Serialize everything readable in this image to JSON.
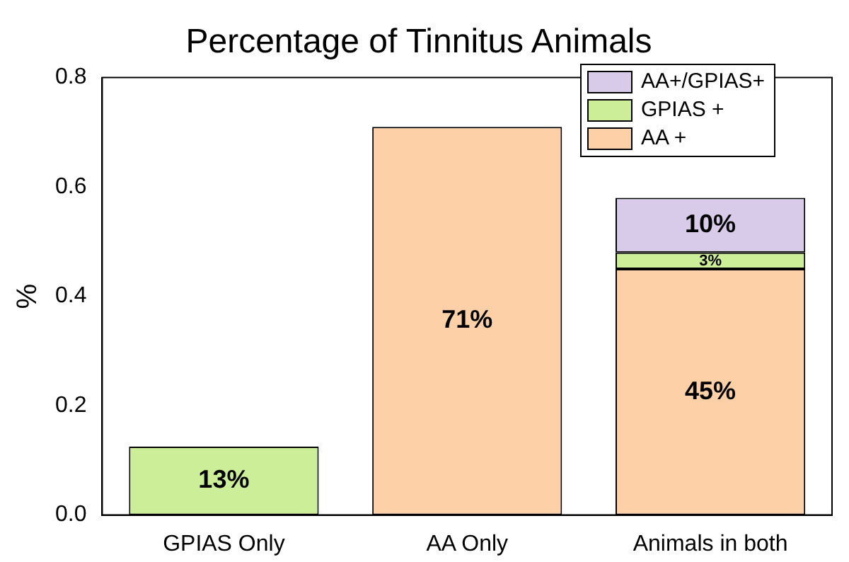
{
  "chart_data": {
    "type": "bar",
    "title": "Percentage of Tinnitus Animals",
    "ylabel": "%",
    "stacked": true,
    "legend": "top right",
    "grid": false,
    "categories": [
      "GPIAS Only",
      "AA Only",
      "Animals in both"
    ],
    "series": [
      {
        "name": "AA +",
        "color": "#fdd0a8",
        "values": [
          null,
          0.71,
          0.45
        ],
        "value_labels": [
          null,
          "71%",
          "45%"
        ]
      },
      {
        "name": "GPIAS +",
        "color": "#ccee99",
        "values": [
          0.125,
          null,
          0.03
        ],
        "value_labels": [
          "13%",
          null,
          "3%"
        ]
      },
      {
        "name": "AA+/GPIAS+",
        "color": "#d8cbea",
        "values": [
          null,
          null,
          0.1
        ],
        "value_labels": [
          null,
          null,
          "10%"
        ]
      }
    ],
    "ylim": [
      0,
      0.8
    ],
    "yticks": [
      {
        "value": 0,
        "label": "0.0"
      },
      {
        "value": 0.2,
        "label": "0.2"
      },
      {
        "value": 0.4,
        "label": "0.4"
      },
      {
        "value": 0.6,
        "label": "0.6"
      },
      {
        "value": 0.8,
        "label": "0.8"
      }
    ]
  }
}
